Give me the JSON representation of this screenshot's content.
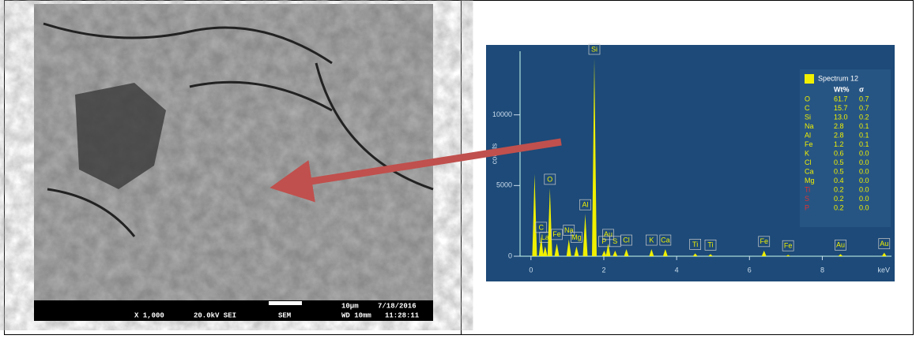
{
  "sem_image": {
    "magnification": "X 1,000",
    "voltage": "20.0kV SEI",
    "mode": "SEM",
    "scale": "10μm",
    "date": "7/18/2016",
    "working_distance": "WD 10mm",
    "time": "11:28:11"
  },
  "chart_data": {
    "type": "spike",
    "y_label": "counts",
    "x_label": "keV",
    "x": [
      0.1,
      0.28,
      0.39,
      0.52,
      0.71,
      1.04,
      1.25,
      1.49,
      1.74,
      2.01,
      2.12,
      2.31,
      2.62,
      3.31,
      3.69,
      4.51,
      4.93,
      6.4,
      7.06,
      8.5,
      9.7
    ],
    "values": [
      5800,
      1400,
      700,
      4800,
      900,
      1200,
      700,
      3000,
      14000,
      400,
      900,
      400,
      500,
      500,
      500,
      200,
      150,
      400,
      100,
      150,
      250
    ],
    "peak_labels": [
      null,
      "C",
      "La",
      "O",
      "Fe",
      "Na",
      "Mg",
      "Al",
      "Si",
      "P",
      "Au",
      "S",
      "Cl",
      "K",
      "Ca",
      "Ti",
      "Ti",
      "Fe",
      "Fe",
      "Au",
      "Au"
    ],
    "color": "#f0f000",
    "xlim": [
      -0.3,
      9.9
    ],
    "ylim": [
      0,
      14500
    ],
    "xticks": [
      0,
      2,
      4,
      6,
      8
    ],
    "yticks": [
      0,
      5000,
      10000
    ],
    "legend": {
      "title": "Spectrum 12",
      "headers": [
        "Wt%",
        "σ"
      ],
      "rows": [
        [
          "O",
          61.7,
          0.7
        ],
        [
          "C",
          15.7,
          0.7
        ],
        [
          "Si",
          13.0,
          0.2
        ],
        [
          "Na",
          2.8,
          0.1
        ],
        [
          "Al",
          2.8,
          0.1
        ],
        [
          "Fe",
          1.2,
          0.1
        ],
        [
          "K",
          0.6,
          0.0
        ],
        [
          "Cl",
          0.5,
          0.0
        ],
        [
          "Ca",
          0.5,
          0.0
        ],
        [
          "Mg",
          0.4,
          0.0
        ],
        [
          "Ti",
          0.2,
          0.0
        ],
        [
          "S",
          0.2,
          0.0
        ],
        [
          "P",
          0.2,
          0.0
        ]
      ],
      "row_labels": [
        null,
        null,
        "13.0",
        null,
        null,
        null,
        null,
        null,
        null,
        null,
        null,
        null,
        null
      ],
      "sigma_labels": [
        null,
        null,
        null,
        null,
        null,
        null,
        "0.0",
        "0.0",
        "0.0",
        "0.0",
        "0.0",
        "0.0",
        "0.0"
      ],
      "red_rows": [
        10,
        11,
        12
      ]
    }
  }
}
